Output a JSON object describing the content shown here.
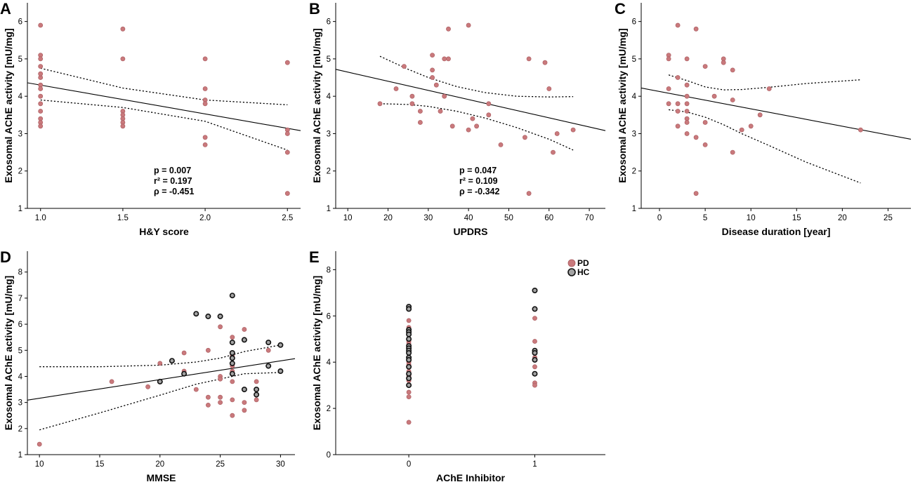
{
  "chart_data": [
    {
      "panel": "A",
      "type": "scatter",
      "xlabel": "H&Y score",
      "ylabel": "Exosomal AChE activity [mU/mg]",
      "xlim": [
        0.92,
        2.58
      ],
      "ylim": [
        1,
        6.5
      ],
      "xticks": [
        "1.0",
        "1.5",
        "2.0",
        "2.5"
      ],
      "xtick_values": [
        1.0,
        1.5,
        2.0,
        2.5
      ],
      "yticks": [
        "1",
        "2",
        "3",
        "4",
        "5",
        "6"
      ],
      "ytick_values": [
        1,
        2,
        3,
        4,
        5,
        6
      ],
      "series": [
        {
          "name": "PD",
          "color": "#c9797c",
          "x": [
            1,
            1,
            1,
            1,
            1,
            1,
            1,
            1,
            1,
            1,
            1,
            1,
            1,
            1,
            1.5,
            1.5,
            1.5,
            1.5,
            1.5,
            1.5,
            1.5,
            2,
            2,
            2,
            2,
            2,
            2,
            2.5,
            2.5,
            2.5,
            2.5,
            2.5
          ],
          "y": [
            5.9,
            5.1,
            5.0,
            4.8,
            4.5,
            4.3,
            4.2,
            4.0,
            3.8,
            3.6,
            3.4,
            3.3,
            3.2,
            4.6,
            5.8,
            5.0,
            3.6,
            3.5,
            3.4,
            3.3,
            3.2,
            5.0,
            4.2,
            3.9,
            3.8,
            2.9,
            2.7,
            4.9,
            3.1,
            3.0,
            2.5,
            1.4
          ]
        }
      ],
      "fit_line": {
        "x": [
          0.92,
          2.58
        ],
        "y": [
          4.36,
          3.08
        ]
      },
      "ci_upper": {
        "x": [
          1.0,
          1.5,
          2.0,
          2.5
        ],
        "y": [
          4.75,
          4.22,
          3.9,
          3.77
        ]
      },
      "ci_lower": {
        "x": [
          1.0,
          1.5,
          2.0,
          2.5
        ],
        "y": [
          3.9,
          3.7,
          3.33,
          2.56
        ]
      },
      "stats": [
        "p = 0.007",
        "r² = 0.197",
        "ρ = -0.451"
      ]
    },
    {
      "panel": "B",
      "type": "scatter",
      "xlabel": "UPDRS",
      "ylabel": "Exosomal AChE activity [mU/mg]",
      "xlim": [
        7,
        74
      ],
      "ylim": [
        1,
        6.5
      ],
      "xticks": [
        "10",
        "20",
        "30",
        "40",
        "50",
        "60",
        "70"
      ],
      "xtick_values": [
        10,
        20,
        30,
        40,
        50,
        60,
        70
      ],
      "yticks": [
        "1",
        "2",
        "3",
        "4",
        "5",
        "6"
      ],
      "ytick_values": [
        1,
        2,
        3,
        4,
        5,
        6
      ],
      "series": [
        {
          "name": "PD",
          "color": "#c9797c",
          "x": [
            18,
            22,
            24,
            26,
            26,
            28,
            28,
            31,
            31,
            31,
            32,
            33,
            34,
            34,
            35,
            35,
            36,
            40,
            40,
            41,
            42,
            45,
            45,
            48,
            54,
            55,
            55,
            59,
            60,
            61,
            62,
            66
          ],
          "y": [
            3.8,
            4.2,
            4.8,
            4.0,
            3.8,
            3.6,
            3.3,
            5.1,
            4.7,
            4.5,
            4.3,
            3.6,
            4.0,
            5.0,
            5.8,
            5.0,
            3.2,
            5.9,
            3.1,
            3.4,
            3.2,
            3.5,
            3.8,
            2.7,
            2.9,
            5.0,
            1.4,
            4.9,
            4.2,
            2.5,
            3.0,
            3.1
          ]
        }
      ],
      "fit_line": {
        "x": [
          7,
          74
        ],
        "y": [
          4.72,
          3.08
        ]
      },
      "ci_upper": {
        "x": [
          18,
          25,
          30,
          37,
          44,
          52,
          60,
          66
        ],
        "y": [
          5.07,
          4.72,
          4.5,
          4.26,
          4.1,
          4.0,
          3.98,
          3.99
        ]
      },
      "ci_lower": {
        "x": [
          18,
          25,
          30,
          37,
          44,
          52,
          60,
          66
        ],
        "y": [
          3.8,
          3.78,
          3.73,
          3.6,
          3.42,
          3.16,
          2.85,
          2.56
        ]
      },
      "stats": [
        "p = 0.047",
        "r² = 0.109",
        "ρ = -0.342"
      ]
    },
    {
      "panel": "C",
      "type": "scatter",
      "xlabel": "Disease duration [year]",
      "ylabel": "Exosomal AChE activity [mU/mg]",
      "xlim": [
        -2,
        27.5
      ],
      "ylim": [
        1,
        6.5
      ],
      "xticks": [
        "0",
        "5",
        "10",
        "15",
        "20",
        "25"
      ],
      "xtick_values": [
        0,
        5,
        10,
        15,
        20,
        25
      ],
      "yticks": [
        "1",
        "2",
        "3",
        "4",
        "5",
        "6"
      ],
      "ytick_values": [
        1,
        2,
        3,
        4,
        5,
        6
      ],
      "series": [
        {
          "name": "PD",
          "color": "#c9797c",
          "x": [
            1,
            1,
            1,
            1,
            2,
            2,
            2,
            2,
            2,
            3,
            3,
            3,
            3,
            3,
            3,
            3,
            3,
            4,
            4,
            4,
            5,
            5,
            5,
            6,
            7,
            7,
            8,
            8,
            8,
            9,
            10,
            11,
            12,
            22
          ],
          "y": [
            5.1,
            5.0,
            4.2,
            3.8,
            5.9,
            4.5,
            3.8,
            3.6,
            3.2,
            5.0,
            4.3,
            4.0,
            3.8,
            3.6,
            3.4,
            3.3,
            3.0,
            5.8,
            2.9,
            1.4,
            4.8,
            3.3,
            2.7,
            4.0,
            5.0,
            4.9,
            4.7,
            3.9,
            2.5,
            3.1,
            3.2,
            3.5,
            4.2,
            3.1
          ]
        }
      ],
      "fit_line": {
        "x": [
          -2,
          27.5
        ],
        "y": [
          4.22,
          2.85
        ]
      },
      "ci_upper": {
        "x": [
          1,
          3,
          5,
          7,
          9,
          12,
          16,
          22
        ],
        "y": [
          4.57,
          4.42,
          4.25,
          4.17,
          4.18,
          4.24,
          4.34,
          4.44
        ]
      },
      "ci_lower": {
        "x": [
          1,
          3,
          5,
          7,
          9,
          12,
          16,
          22
        ],
        "y": [
          3.64,
          3.58,
          3.44,
          3.24,
          3.0,
          2.68,
          2.24,
          1.68
        ]
      },
      "stats": []
    },
    {
      "panel": "D",
      "type": "scatter",
      "xlabel": "MMSE",
      "ylabel": "Exosomal AChE activity [mU/mg]",
      "xlim": [
        9,
        31.2
      ],
      "ylim": [
        1,
        8.8
      ],
      "xticks": [
        "10",
        "15",
        "20",
        "25",
        "30"
      ],
      "xtick_values": [
        10,
        15,
        20,
        25,
        30
      ],
      "yticks": [
        "1",
        "2",
        "3",
        "4",
        "5",
        "6",
        "7",
        "8"
      ],
      "ytick_values": [
        1,
        2,
        3,
        4,
        5,
        6,
        7,
        8
      ],
      "series": [
        {
          "name": "PD",
          "color": "#c9797c",
          "x": [
            10,
            16,
            19,
            20,
            22,
            22,
            23,
            24,
            24,
            24,
            25,
            25,
            25,
            25,
            25,
            26,
            26,
            26,
            26,
            26,
            26,
            26,
            27,
            27,
            27,
            28,
            28,
            29
          ],
          "y": [
            1.4,
            3.8,
            3.6,
            4.5,
            4.9,
            4.2,
            3.5,
            5.0,
            3.2,
            2.9,
            5.9,
            4.0,
            3.9,
            3.2,
            3.0,
            4.8,
            4.4,
            4.2,
            3.8,
            3.1,
            2.5,
            5.5,
            5.8,
            3.0,
            2.7,
            3.8,
            3.1,
            5.0
          ]
        },
        {
          "name": "HC",
          "color": "#a3a3a3",
          "x": [
            20,
            21,
            22,
            23,
            24,
            25,
            26,
            26,
            26,
            26,
            26,
            26,
            27,
            27,
            28,
            28,
            29,
            29,
            30,
            30
          ],
          "y": [
            3.8,
            4.6,
            4.1,
            6.4,
            6.3,
            6.3,
            7.1,
            5.3,
            4.9,
            4.7,
            4.5,
            4.1,
            5.4,
            3.5,
            3.5,
            3.3,
            5.3,
            4.4,
            5.2,
            4.2
          ]
        }
      ],
      "fit_line": {
        "x": [
          9,
          31.2
        ],
        "y": [
          3.09,
          4.68
        ]
      },
      "ci_upper": {
        "x": [
          10,
          15,
          20,
          23,
          25,
          27,
          30
        ],
        "y": [
          4.37,
          4.37,
          4.43,
          4.55,
          4.7,
          4.95,
          5.2
        ]
      },
      "ci_lower": {
        "x": [
          10,
          15,
          20,
          23,
          25,
          27,
          30
        ],
        "y": [
          1.95,
          2.6,
          3.28,
          3.7,
          3.9,
          4.1,
          4.15
        ]
      },
      "stats": []
    },
    {
      "panel": "E",
      "type": "scatter",
      "xlabel": "AChE Inhibitor",
      "ylabel": "Exosomal AChE activity [mU/mg]",
      "xlim": [
        -0.58,
        1.56
      ],
      "ylim": [
        0,
        8.8
      ],
      "xticks": [
        "0",
        "1"
      ],
      "xtick_values": [
        0,
        1
      ],
      "yticks": [
        "0",
        "2",
        "4",
        "6",
        "8"
      ],
      "ytick_values": [
        0,
        2,
        4,
        6,
        8
      ],
      "legend": {
        "position": "top-right",
        "entries": [
          "PD",
          "HC"
        ]
      },
      "series": [
        {
          "name": "PD",
          "color": "#c9797c",
          "x": [
            0,
            0,
            0,
            0,
            0,
            0,
            0,
            0,
            0,
            0,
            0,
            0,
            0,
            0,
            0,
            0,
            0,
            0,
            0,
            0,
            1,
            1,
            1,
            1,
            1,
            1
          ],
          "y": [
            5.8,
            5.5,
            5.0,
            4.9,
            4.8,
            4.5,
            4.4,
            4.2,
            4.0,
            3.9,
            3.8,
            3.6,
            3.5,
            3.4,
            3.3,
            3.2,
            3.0,
            2.7,
            2.5,
            1.4,
            5.9,
            4.9,
            4.2,
            3.8,
            3.1,
            3.0
          ]
        },
        {
          "name": "HC",
          "color": "#a3a3a3",
          "x": [
            0,
            0,
            0,
            0,
            0,
            0,
            0,
            0,
            0,
            0,
            0,
            0,
            0,
            0,
            0,
            0,
            1,
            1,
            1,
            1,
            1,
            1
          ],
          "y": [
            6.4,
            6.3,
            5.4,
            5.3,
            5.2,
            5.0,
            4.7,
            4.6,
            4.5,
            4.4,
            4.2,
            4.1,
            3.8,
            3.5,
            3.3,
            3.0,
            7.1,
            6.3,
            4.5,
            4.4,
            4.1,
            3.5
          ]
        }
      ],
      "stats": []
    }
  ]
}
